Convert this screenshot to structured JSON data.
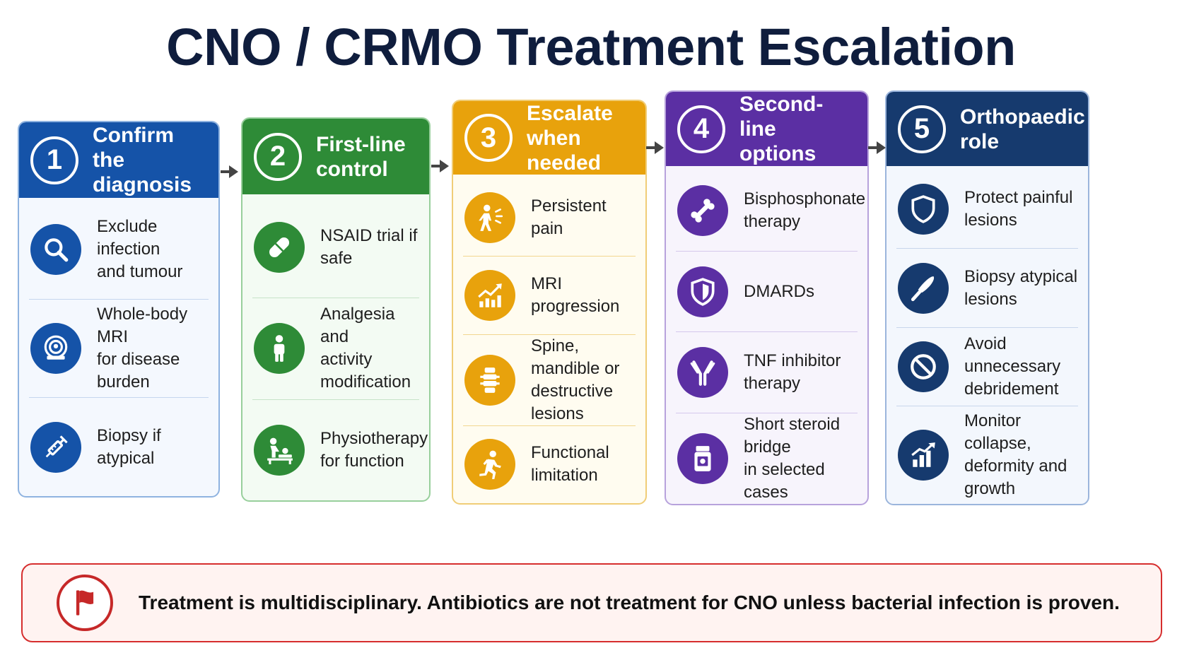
{
  "title": "CNO / CRMO Treatment Escalation",
  "steps": [
    {
      "number": "1",
      "title_line1": "Confirm the",
      "title_line2": "diagnosis",
      "color": "#1553a8",
      "items": [
        {
          "line1": "Exclude infection",
          "line2": "and tumour",
          "icon": "magnifier-icon"
        },
        {
          "line1": "Whole-body MRI",
          "line2": "for disease burden",
          "icon": "mri-scanner-icon"
        },
        {
          "line1": "Biopsy if atypical",
          "line2": "",
          "icon": "syringe-icon"
        }
      ]
    },
    {
      "number": "2",
      "title_line1": "First-line",
      "title_line2": "control",
      "color": "#2e8b37",
      "items": [
        {
          "line1": "NSAID trial if safe",
          "line2": "",
          "icon": "pill-icon"
        },
        {
          "line1": "Analgesia and",
          "line2": "activity modification",
          "icon": "person-icon"
        },
        {
          "line1": "Physiotherapy",
          "line2": "for function",
          "icon": "physiotherapy-icon"
        }
      ]
    },
    {
      "number": "3",
      "title_line1": "Escalate",
      "title_line2": "when needed",
      "color": "#e8a20c",
      "items": [
        {
          "line1": "Persistent pain",
          "line2": "",
          "icon": "pain-person-icon"
        },
        {
          "line1": "MRI progression",
          "line2": "",
          "icon": "trend-chart-icon"
        },
        {
          "line1": "Spine, mandible or",
          "line2": "destructive lesions",
          "icon": "spine-icon"
        },
        {
          "line1": "Functional",
          "line2": "limitation",
          "icon": "running-person-icon"
        }
      ]
    },
    {
      "number": "4",
      "title_line1": "Second-line",
      "title_line2": "options",
      "color": "#5b2fa3",
      "items": [
        {
          "line1": "Bisphosphonate",
          "line2": "therapy",
          "icon": "bone-icon"
        },
        {
          "line1": "DMARDs",
          "line2": "",
          "icon": "shield-icon"
        },
        {
          "line1": "TNF inhibitor",
          "line2": "therapy",
          "icon": "antibody-icon"
        },
        {
          "line1": "Short steroid bridge",
          "line2": "in selected cases",
          "icon": "pill-bottle-icon"
        }
      ]
    },
    {
      "number": "5",
      "title_line1": "Orthopaedic",
      "title_line2": "role",
      "color": "#163a6e",
      "items": [
        {
          "line1": "Protect painful",
          "line2": "lesions",
          "icon": "shield-icon"
        },
        {
          "line1": "Biopsy atypical",
          "line2": "lesions",
          "icon": "scalpel-icon"
        },
        {
          "line1": "Avoid unnecessary",
          "line2": "debridement",
          "icon": "prohibited-icon"
        },
        {
          "line1": "Monitor collapse,",
          "line2": "deformity and",
          "line3": "growth",
          "icon": "growth-chart-icon"
        }
      ]
    }
  ],
  "footer_note": {
    "text": "Treatment is multidisciplinary. Antibiotics are not treatment for CNO unless bacterial infection is proven.",
    "icon": "red-flag-icon",
    "color": "#d62e2e"
  }
}
